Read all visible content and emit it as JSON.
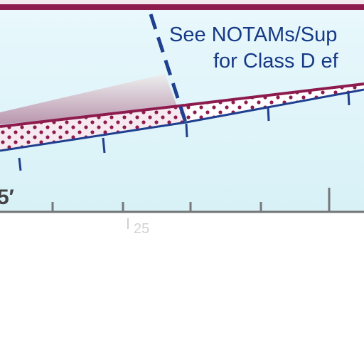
{
  "chart_panel": {
    "note_line1": "See NOTAMs/Sup",
    "note_line2": "for Class D ef",
    "altitude_label": "5′",
    "scale_label": "25",
    "colors": {
      "sky_top": "#e7f7fb",
      "sky_bottom": "#d6f1f7",
      "boundary_maroon": "#8e1b4d",
      "boundary_navy": "#1f3f8f",
      "text_navy": "#173a86",
      "ground_rule": "#555555",
      "tick_gray": "#666666"
    }
  }
}
